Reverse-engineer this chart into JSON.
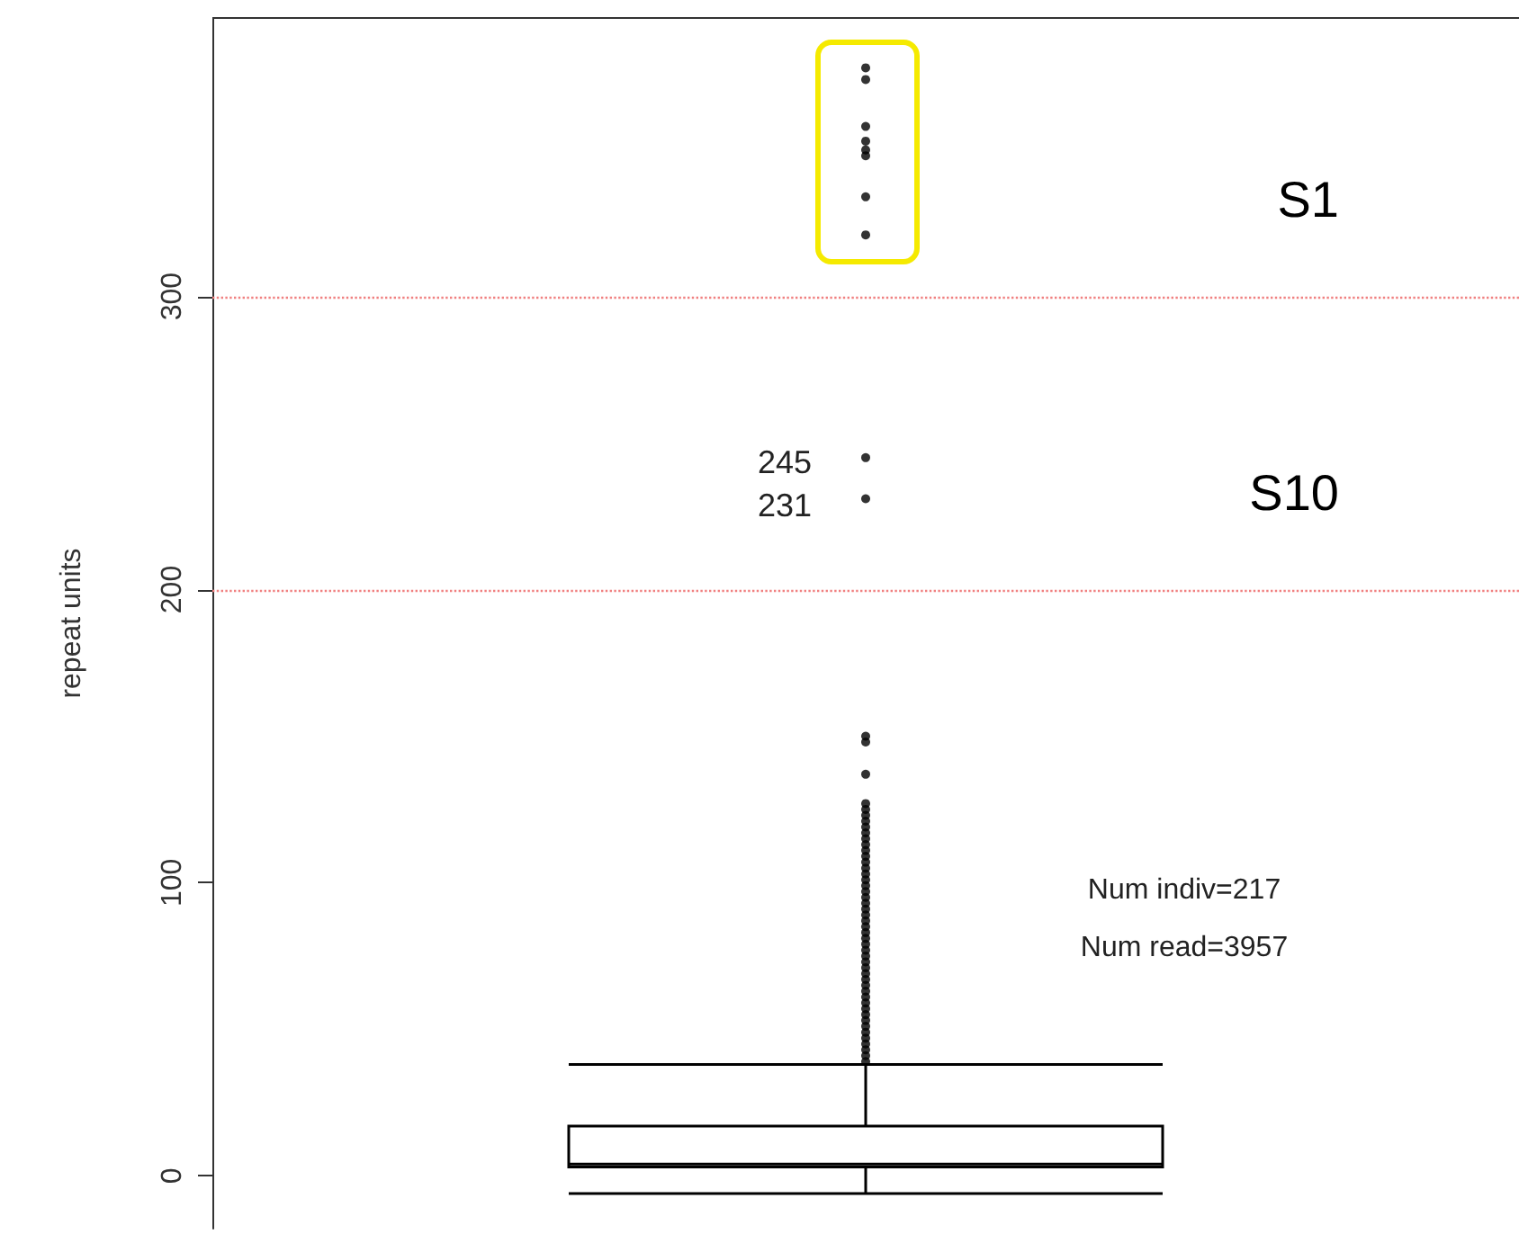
{
  "chart_data": {
    "type": "box",
    "ylabel": "repeat units",
    "categories": [
      null
    ],
    "ylim": [
      -18,
      395
    ],
    "yticks": [
      0,
      100,
      200,
      300
    ],
    "grid": false,
    "color": "#000000",
    "boxes": [
      {
        "low": -6,
        "q1": 3,
        "median": 4,
        "q3": 17,
        "high": 38,
        "outliers": [
          39,
          41,
          43,
          45,
          47,
          49,
          51,
          53,
          55,
          57,
          59,
          61,
          63,
          65,
          67,
          69,
          71,
          73,
          75,
          77,
          79,
          81,
          83,
          85,
          87,
          89,
          91,
          93,
          95,
          97,
          99,
          101,
          103,
          105,
          107,
          109,
          111,
          113,
          115,
          117,
          119,
          121,
          123,
          125,
          127,
          137,
          148,
          150,
          231,
          245,
          321,
          334,
          348,
          350,
          353,
          358,
          374,
          378
        ]
      }
    ],
    "ref_lines": [
      {
        "axis": "y",
        "value": 300,
        "label": "S1",
        "color": "#f08080",
        "line_style": "dotted"
      },
      {
        "axis": "y",
        "value": 200,
        "label": "S10",
        "color": "#f08080",
        "line_style": "dotted"
      }
    ],
    "annotations": [
      "245",
      "231",
      "Num indiv=217",
      "Num read=3957"
    ]
  }
}
